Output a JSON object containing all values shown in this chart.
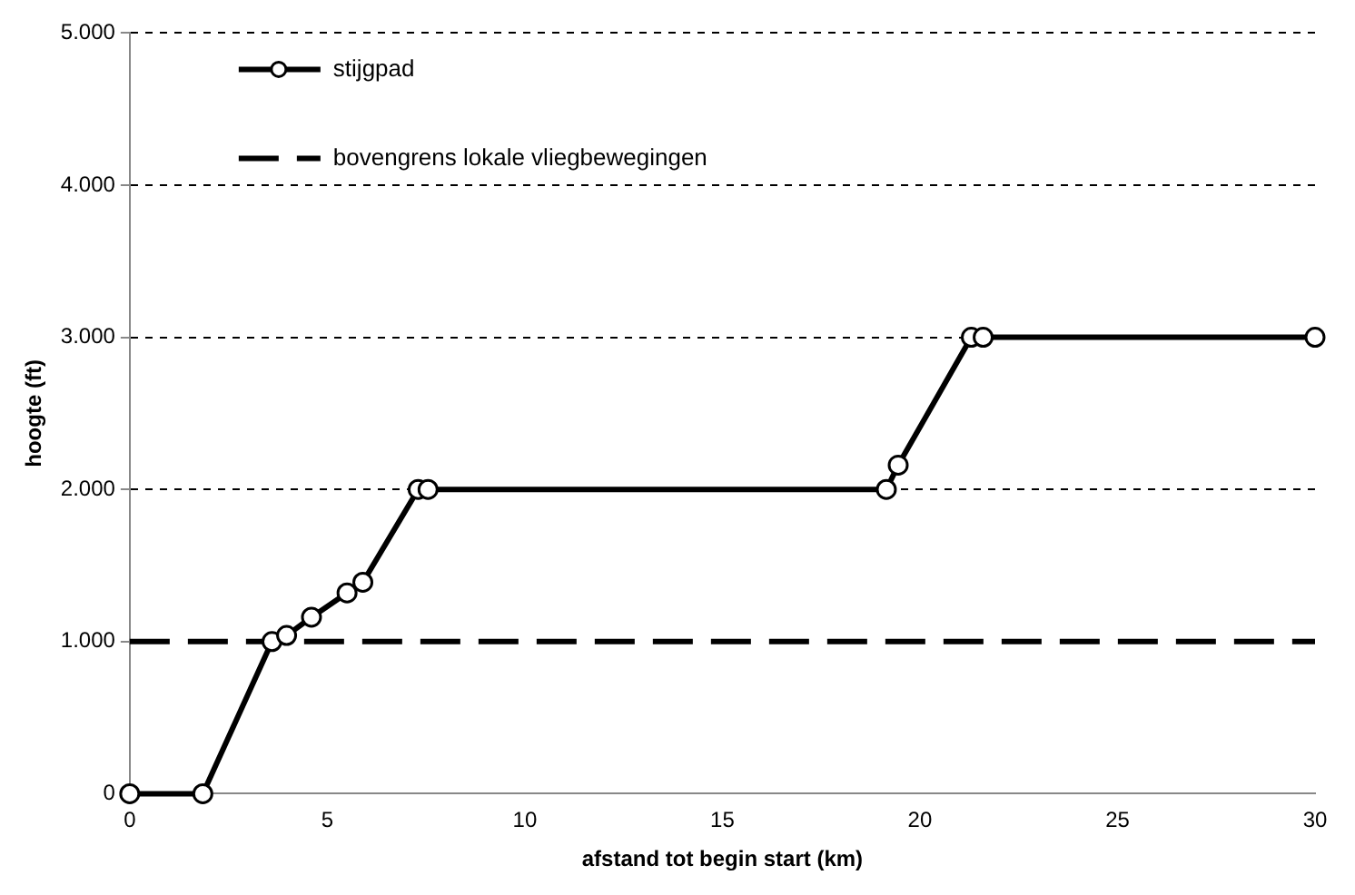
{
  "chart_data": {
    "type": "line",
    "xlabel": "afstand tot begin start (km)",
    "ylabel": "hoogte (ft)",
    "xlim": [
      0,
      30
    ],
    "xticks": [
      0,
      5,
      10,
      15,
      20,
      25,
      30
    ],
    "ylim": [
      0,
      5000
    ],
    "yticks": [
      {
        "value": 0,
        "label": "0"
      },
      {
        "value": 1000,
        "label": "1.000"
      },
      {
        "value": 2000,
        "label": "2.000"
      },
      {
        "value": 3000,
        "label": "3.000"
      },
      {
        "value": 4000,
        "label": "4.000"
      },
      {
        "value": 5000,
        "label": "5.000"
      }
    ],
    "grid": "y",
    "legend": "top left",
    "series": [
      {
        "name": "stijgpad",
        "color": "#000000",
        "marker": "circle",
        "line_style": "solid",
        "x": [
          0,
          1.85,
          3.6,
          3.97,
          4.6,
          5.5,
          5.9,
          7.3,
          7.55,
          19.15,
          19.45,
          21.3,
          21.6,
          30
        ],
        "values": [
          0,
          0,
          1000,
          1040,
          1160,
          1320,
          1390,
          2000,
          2000,
          2000,
          2160,
          3000,
          3000,
          3000
        ]
      },
      {
        "name": "bovengrens lokale vliegbewegingen",
        "color": "#000000",
        "marker": "none",
        "line_style": "dashed",
        "x": [
          0,
          30
        ],
        "values": [
          1000,
          1000
        ]
      }
    ]
  }
}
